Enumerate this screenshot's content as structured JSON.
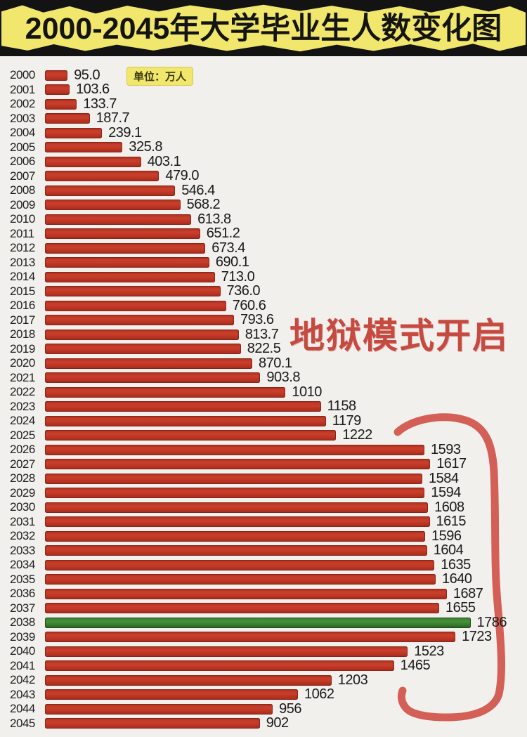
{
  "title": "2000-2045年大学毕业生人数变化图",
  "unit_badge": "单位：万人",
  "annotation": "地狱模式开启",
  "colors": {
    "banner": "#f0e76c",
    "bar": "#c23b28",
    "bar_border": "#8a2419",
    "highlight": "#38762d",
    "highlight_border": "#1c4b17",
    "annotation": "#c74a40",
    "bracket": "#d15349"
  },
  "chart_data": {
    "type": "bar",
    "orientation": "horizontal",
    "title": "2000-2045年大学毕业生人数变化图",
    "unit": "万人",
    "categories": [
      "2000",
      "2001",
      "2002",
      "2003",
      "2004",
      "2005",
      "2006",
      "2007",
      "2008",
      "2009",
      "2010",
      "2011",
      "2012",
      "2013",
      "2014",
      "2015",
      "2016",
      "2017",
      "2018",
      "2019",
      "2020",
      "2021",
      "2022",
      "2023",
      "2024",
      "2025",
      "2026",
      "2027",
      "2028",
      "2029",
      "2030",
      "2031",
      "2032",
      "2033",
      "2034",
      "2035",
      "2036",
      "2037",
      "2038",
      "2039",
      "2040",
      "2041",
      "2042",
      "2043",
      "2044",
      "2045"
    ],
    "values": [
      95.0,
      103.6,
      133.7,
      187.7,
      239.1,
      325.8,
      403.1,
      479.0,
      546.4,
      568.2,
      613.8,
      651.2,
      673.4,
      690.1,
      713.0,
      736.0,
      760.6,
      793.6,
      813.7,
      822.5,
      870.1,
      903.8,
      1010,
      1158,
      1179,
      1222,
      1593,
      1617,
      1584,
      1594,
      1608,
      1615,
      1596,
      1604,
      1635,
      1640,
      1687,
      1655,
      1786,
      1723,
      1523,
      1465,
      1203,
      1062,
      956,
      902
    ],
    "value_labels": [
      "95.0",
      "103.6",
      "133.7",
      "187.7",
      "239.1",
      "325.8",
      "403.1",
      "479.0",
      "546.4",
      "568.2",
      "613.8",
      "651.2",
      "673.4",
      "690.1",
      "713.0",
      "736.0",
      "760.6",
      "793.6",
      "813.7",
      "822.5",
      "870.1",
      "903.8",
      "1010",
      "1158",
      "1179",
      "1222",
      "1593",
      "1617",
      "1584",
      "1594",
      "1608",
      "1615",
      "1596",
      "1604",
      "1635",
      "1640",
      "1687",
      "1655",
      "1786",
      "1723",
      "1523",
      "1465",
      "1203",
      "1062",
      "956",
      "902"
    ],
    "highlight_category": "2038",
    "annotation": "地狱模式开启",
    "xlim": [
      0,
      1800
    ],
    "grid": false,
    "legend": false
  }
}
